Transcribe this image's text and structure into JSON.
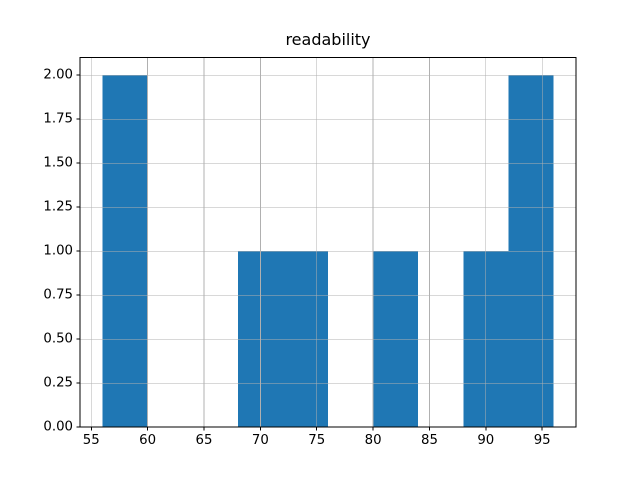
{
  "chart_data": {
    "type": "bar",
    "subtype": "histogram",
    "title": "readability",
    "xlabel": "",
    "ylabel": "",
    "bin_edges": [
      56,
      60,
      64,
      68,
      72,
      76,
      80,
      84,
      88,
      92,
      96
    ],
    "counts": [
      2,
      0,
      0,
      1,
      1,
      0,
      1,
      0,
      1,
      2
    ],
    "xlim": [
      54,
      98
    ],
    "ylim": [
      0,
      2.1
    ],
    "xtick_values": [
      55,
      60,
      65,
      70,
      75,
      80,
      85,
      90,
      95
    ],
    "xtick_labels": [
      "55",
      "60",
      "65",
      "70",
      "75",
      "80",
      "85",
      "90",
      "95"
    ],
    "ytick_values": [
      0,
      0.25,
      0.5,
      0.75,
      1.0,
      1.25,
      1.5,
      1.75,
      2.0
    ],
    "ytick_labels": [
      "0.00",
      "0.25",
      "0.50",
      "0.75",
      "1.00",
      "1.25",
      "1.50",
      "1.75",
      "2.00"
    ],
    "grid": true,
    "grid_above_bars": true,
    "legend": "none",
    "colors": {
      "bar": "#1f77b4",
      "grid": "#b0b0b0",
      "spine": "#000000",
      "text": "#000000",
      "background": "#ffffff"
    }
  }
}
